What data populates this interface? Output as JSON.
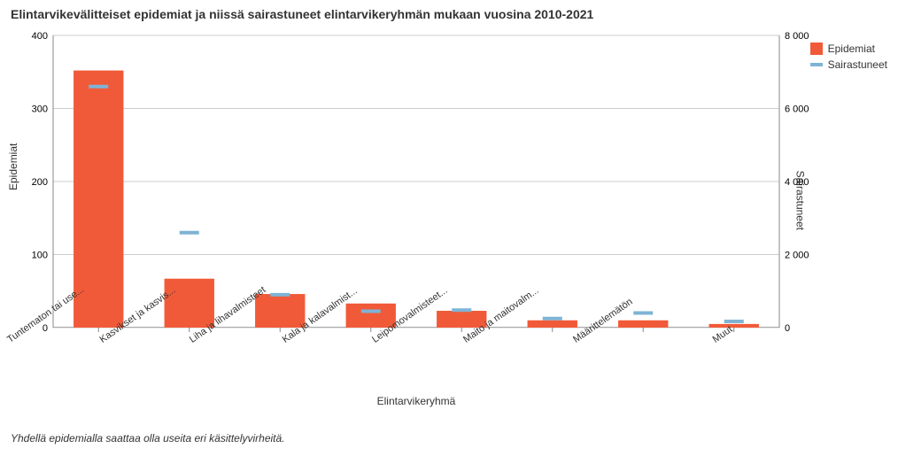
{
  "title": "Elintarvikevälitteiset epidemiat ja niissä sairastuneet elintarvikeryhmän mukaan vuosina 2010-2021",
  "footnote": "Yhdellä epidemialla saattaa olla useita eri käsittelyvirheitä.",
  "chart": {
    "type": "bar+marker",
    "left_axis": {
      "label": "Epidemiat",
      "min": 0,
      "max": 400,
      "ticks": [
        0,
        100,
        200,
        300,
        400
      ]
    },
    "right_axis": {
      "label": "Sairastuneet",
      "min": 0,
      "max": 8000,
      "ticks": [
        0,
        2000,
        4000,
        6000,
        8000
      ],
      "tick_labels": [
        "0",
        "2 000",
        "4 000",
        "6 000",
        "8 000"
      ]
    },
    "x_axis": {
      "label": "Elintarvikeryhmä"
    },
    "categories": [
      "Tuntematon tai use...",
      "Kasvikset ja kasvis...",
      "Liha ja lihavalmisteet",
      "Kala ja kalavalmist...",
      "Leipomovalmisteet...",
      "Maito ja maitovalm...",
      "Määrittelemätön",
      "Muut"
    ],
    "series": [
      {
        "name": "Epidemiat",
        "type": "bar",
        "color": "#f15a38",
        "values": [
          352,
          67,
          46,
          33,
          23,
          10,
          10,
          5
        ]
      },
      {
        "name": "Sairastuneet",
        "type": "dash",
        "color": "#7fb3d5",
        "values": [
          6600,
          2600,
          900,
          450,
          480,
          250,
          400,
          170
        ]
      }
    ],
    "bar_width": 0.55,
    "background_color": "#ffffff",
    "grid_color": "#cccccc",
    "label_fontsize": 11,
    "title_fontsize": 14
  },
  "legend": {
    "items": [
      {
        "label": "Epidemiat",
        "kind": "bar"
      },
      {
        "label": "Sairastuneet",
        "kind": "line"
      }
    ]
  }
}
